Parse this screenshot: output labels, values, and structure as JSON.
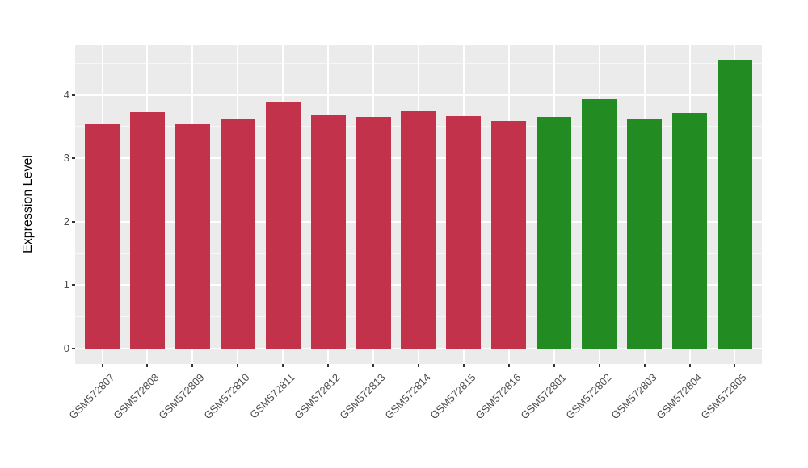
{
  "chart_data": {
    "type": "bar",
    "title": "",
    "xlabel": "",
    "ylabel": "Expression Level",
    "categories": [
      "GSM572807",
      "GSM572808",
      "GSM572809",
      "GSM572810",
      "GSM572811",
      "GSM572812",
      "GSM572813",
      "GSM572814",
      "GSM572815",
      "GSM572816",
      "GSM572801",
      "GSM572802",
      "GSM572803",
      "GSM572804",
      "GSM572805"
    ],
    "values": [
      3.54,
      3.73,
      3.54,
      3.62,
      3.88,
      3.68,
      3.65,
      3.74,
      3.67,
      3.59,
      3.65,
      3.93,
      3.62,
      3.72,
      4.55
    ],
    "bar_groups": [
      "red",
      "red",
      "red",
      "red",
      "red",
      "red",
      "red",
      "red",
      "red",
      "red",
      "green",
      "green",
      "green",
      "green",
      "green"
    ],
    "group_colors": {
      "red": "#C3324B",
      "green": "#228B22"
    },
    "yticks": [
      0,
      1,
      2,
      3,
      4
    ],
    "ylim": [
      0,
      4.78
    ],
    "grid": "on",
    "legend": "none",
    "panel_bg": "#EBEBEB",
    "grid_color": "#FFFFFF",
    "axis_text_color": "#4D4D4D",
    "tick_mark_color": "#333333"
  }
}
